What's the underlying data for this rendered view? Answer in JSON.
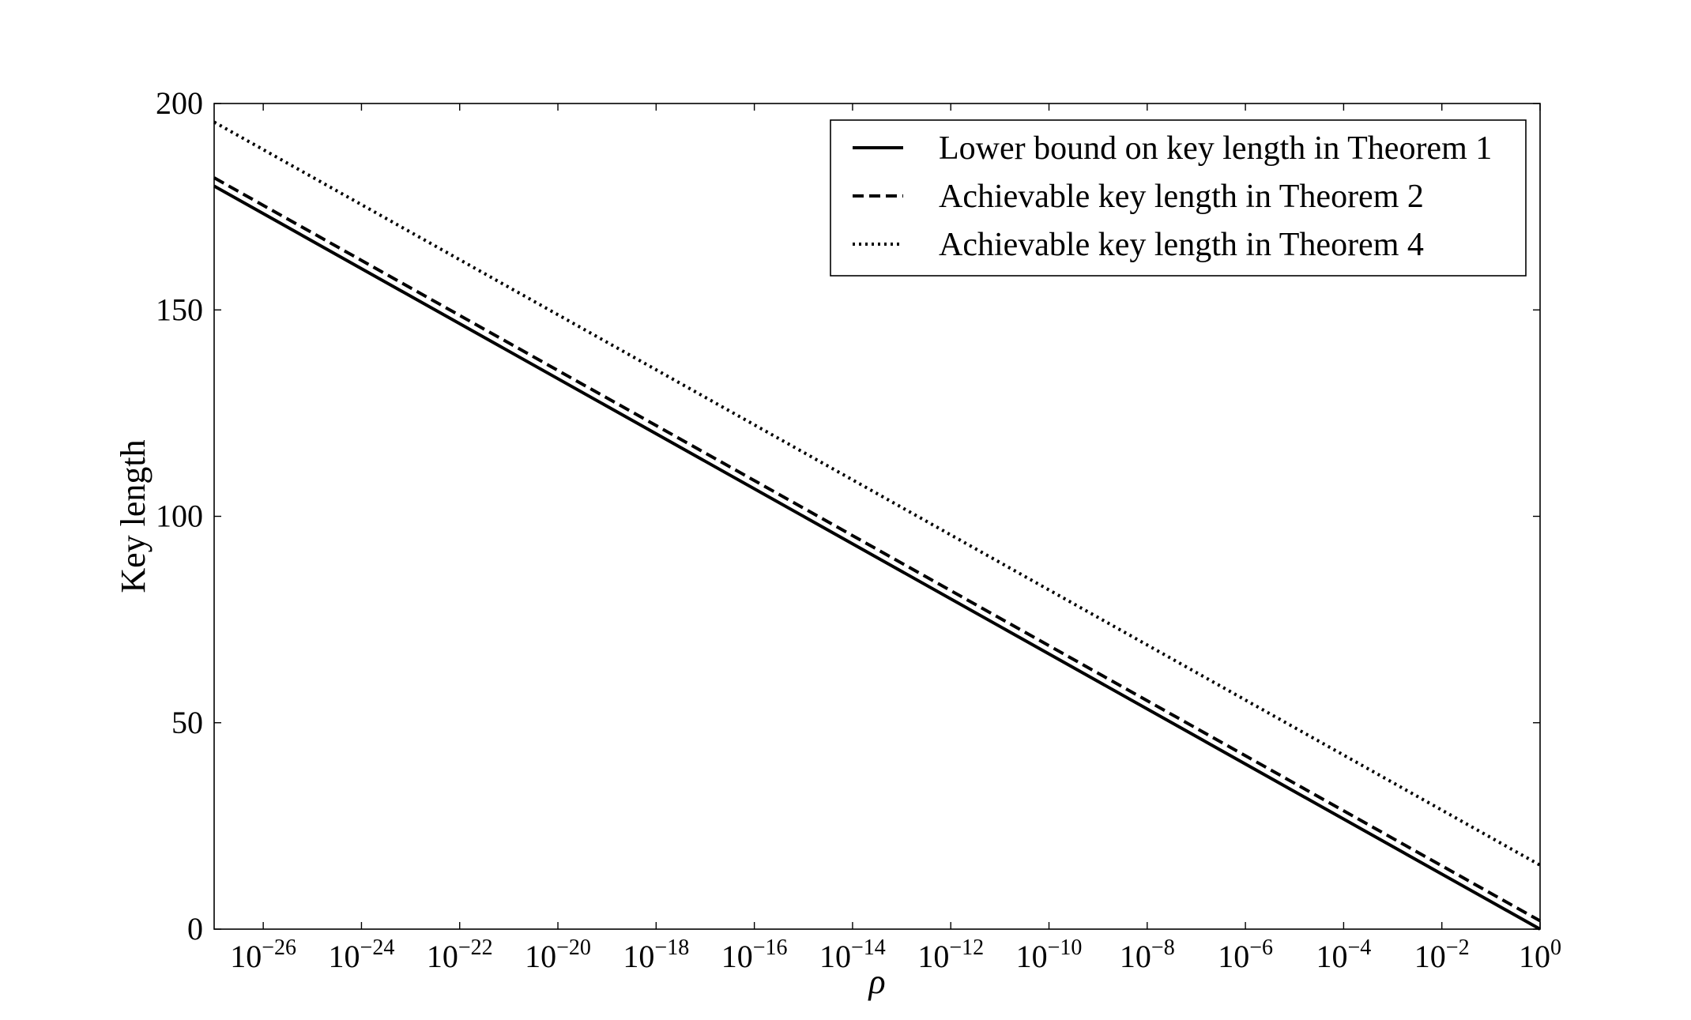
{
  "chart_data": {
    "type": "line",
    "title": "",
    "xlabel": "ρ",
    "ylabel": "Key length",
    "xscale": "log10",
    "xlim": [
      1e-27,
      1
    ],
    "ylim": [
      0,
      200
    ],
    "grid": false,
    "legend_position": "top-right",
    "x_ticks": [
      {
        "base": "10",
        "exp": "−26",
        "value": 1e-26
      },
      {
        "base": "10",
        "exp": "−24",
        "value": 1e-24
      },
      {
        "base": "10",
        "exp": "−22",
        "value": 1e-22
      },
      {
        "base": "10",
        "exp": "−20",
        "value": 1e-20
      },
      {
        "base": "10",
        "exp": "−18",
        "value": 1e-18
      },
      {
        "base": "10",
        "exp": "−16",
        "value": 1e-16
      },
      {
        "base": "10",
        "exp": "−14",
        "value": 1e-14
      },
      {
        "base": "10",
        "exp": "−12",
        "value": 1e-12
      },
      {
        "base": "10",
        "exp": "−10",
        "value": 1e-10
      },
      {
        "base": "10",
        "exp": "−8",
        "value": 1e-08
      },
      {
        "base": "10",
        "exp": "−6",
        "value": 1e-06
      },
      {
        "base": "10",
        "exp": "−4",
        "value": 0.0001
      },
      {
        "base": "10",
        "exp": "−2",
        "value": 0.01
      },
      {
        "base": "10",
        "exp": "0",
        "value": 1
      }
    ],
    "y_ticks": [
      {
        "label": "0",
        "value": 0
      },
      {
        "label": "50",
        "value": 50
      },
      {
        "label": "100",
        "value": 100
      },
      {
        "label": "150",
        "value": 150
      },
      {
        "label": "200",
        "value": 200
      }
    ],
    "series": [
      {
        "name": "Lower bound on key length in Theorem 1",
        "style": "solid",
        "x": [
          1e-27,
          1
        ],
        "y": [
          180,
          0
        ]
      },
      {
        "name": "Achievable key length in Theorem 2",
        "style": "dashed",
        "x": [
          1e-27,
          1
        ],
        "y": [
          182,
          2
        ]
      },
      {
        "name": "Achievable key length in Theorem 4",
        "style": "dotted",
        "x": [
          1e-27,
          1
        ],
        "y": [
          195.5,
          15.5
        ]
      }
    ]
  },
  "colors": {
    "line": "#000000",
    "background": "#ffffff"
  }
}
